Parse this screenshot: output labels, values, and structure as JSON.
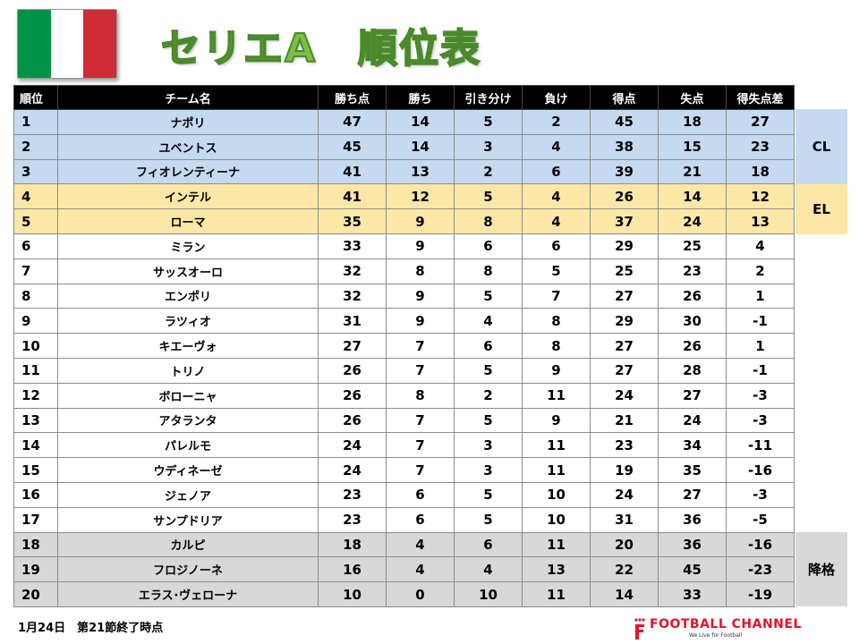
{
  "title": "セリエA　順位表",
  "flag_colors": [
    "#009246",
    "#ffffff",
    "#ce2b37"
  ],
  "headers": [
    "順位",
    "チーム名",
    "勝ち点",
    "勝ち",
    "引き分け",
    "負け",
    "得点",
    "失点",
    "得失点差"
  ],
  "rows": [
    {
      "rank": "1",
      "team": "ナポリ",
      "points": "47",
      "wins": "14",
      "draws": "5",
      "losses": "2",
      "gf": "45",
      "ga": "18",
      "gd": "27",
      "zone": "cl"
    },
    {
      "rank": "2",
      "team": "ユベントス",
      "points": "45",
      "wins": "14",
      "draws": "3",
      "losses": "4",
      "gf": "38",
      "ga": "15",
      "gd": "23",
      "zone": "cl"
    },
    {
      "rank": "3",
      "team": "フィオレンティーナ",
      "points": "41",
      "wins": "13",
      "draws": "2",
      "losses": "6",
      "gf": "39",
      "ga": "21",
      "gd": "18",
      "zone": "cl"
    },
    {
      "rank": "4",
      "team": "インテル",
      "points": "41",
      "wins": "12",
      "draws": "5",
      "losses": "4",
      "gf": "26",
      "ga": "14",
      "gd": "12",
      "zone": "el"
    },
    {
      "rank": "5",
      "team": "ローマ",
      "points": "35",
      "wins": "9",
      "draws": "8",
      "losses": "4",
      "gf": "37",
      "ga": "24",
      "gd": "13",
      "zone": "el"
    },
    {
      "rank": "6",
      "team": "ミラン",
      "points": "33",
      "wins": "9",
      "draws": "6",
      "losses": "6",
      "gf": "29",
      "ga": "25",
      "gd": "4",
      "zone": ""
    },
    {
      "rank": "7",
      "team": "サッスオーロ",
      "points": "32",
      "wins": "8",
      "draws": "8",
      "losses": "5",
      "gf": "25",
      "ga": "23",
      "gd": "2",
      "zone": ""
    },
    {
      "rank": "8",
      "team": "エンポリ",
      "points": "32",
      "wins": "9",
      "draws": "5",
      "losses": "7",
      "gf": "27",
      "ga": "26",
      "gd": "1",
      "zone": ""
    },
    {
      "rank": "9",
      "team": "ラツィオ",
      "points": "31",
      "wins": "9",
      "draws": "4",
      "losses": "8",
      "gf": "29",
      "ga": "30",
      "gd": "-1",
      "zone": ""
    },
    {
      "rank": "10",
      "team": "キエーヴォ",
      "points": "27",
      "wins": "7",
      "draws": "6",
      "losses": "8",
      "gf": "27",
      "ga": "26",
      "gd": "1",
      "zone": ""
    },
    {
      "rank": "11",
      "team": "トリノ",
      "points": "26",
      "wins": "7",
      "draws": "5",
      "losses": "9",
      "gf": "27",
      "ga": "28",
      "gd": "-1",
      "zone": ""
    },
    {
      "rank": "12",
      "team": "ボローニャ",
      "points": "26",
      "wins": "8",
      "draws": "2",
      "losses": "11",
      "gf": "24",
      "ga": "27",
      "gd": "-3",
      "zone": ""
    },
    {
      "rank": "13",
      "team": "アタランタ",
      "points": "26",
      "wins": "7",
      "draws": "5",
      "losses": "9",
      "gf": "21",
      "ga": "24",
      "gd": "-3",
      "zone": ""
    },
    {
      "rank": "14",
      "team": "パレルモ",
      "points": "24",
      "wins": "7",
      "draws": "3",
      "losses": "11",
      "gf": "23",
      "ga": "34",
      "gd": "-11",
      "zone": ""
    },
    {
      "rank": "15",
      "team": "ウディネーゼ",
      "points": "24",
      "wins": "7",
      "draws": "3",
      "losses": "11",
      "gf": "19",
      "ga": "35",
      "gd": "-16",
      "zone": ""
    },
    {
      "rank": "16",
      "team": "ジェノア",
      "points": "23",
      "wins": "6",
      "draws": "5",
      "losses": "10",
      "gf": "24",
      "ga": "27",
      "gd": "-3",
      "zone": ""
    },
    {
      "rank": "17",
      "team": "サンプドリア",
      "points": "23",
      "wins": "6",
      "draws": "5",
      "losses": "10",
      "gf": "31",
      "ga": "36",
      "gd": "-5",
      "zone": ""
    },
    {
      "rank": "18",
      "team": "カルピ",
      "points": "18",
      "wins": "4",
      "draws": "6",
      "losses": "11",
      "gf": "20",
      "ga": "36",
      "gd": "-16",
      "zone": "rel"
    },
    {
      "rank": "19",
      "team": "フロジノーネ",
      "points": "16",
      "wins": "4",
      "draws": "4",
      "losses": "13",
      "gf": "22",
      "ga": "45",
      "gd": "-23",
      "zone": "rel"
    },
    {
      "rank": "20",
      "team": "エラス･ヴェローナ",
      "points": "10",
      "wins": "0",
      "draws": "10",
      "losses": "11",
      "gf": "14",
      "ga": "33",
      "gd": "-19",
      "zone": "rel"
    }
  ],
  "zones": {
    "cl": "CL",
    "el": "EL",
    "rel": "降格"
  },
  "zone_colors": {
    "cl": "#c5d9f0",
    "el": "#fde7a6",
    "rel": "#d8d8d8"
  },
  "footnote": "1月24日　第21節終了時点",
  "logo": {
    "name": "FOOTBALL CHANNEL",
    "tagline": "We Live for Football",
    "color": "#e2142d"
  }
}
